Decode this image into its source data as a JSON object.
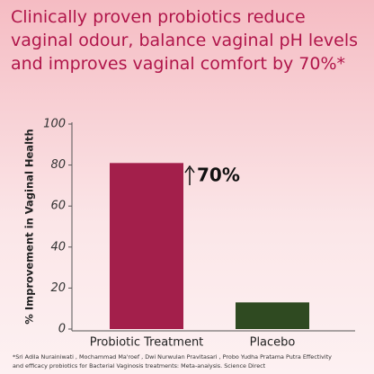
{
  "chart_data": {
    "type": "bar",
    "title": "Clinically proven probiotics reduce vaginal odour, balance vaginal pH levels and improves vaginal comfort by 70%*",
    "y_label": "% Improvement in Vaginal Health",
    "categories": [
      "Probiotic Treatment",
      "Placebo"
    ],
    "values": [
      81,
      13
    ],
    "colors": [
      "#a31f4b",
      "#2f4a21"
    ],
    "ylim": [
      0,
      100
    ],
    "yticks": [
      0,
      20,
      40,
      60,
      80,
      100
    ],
    "annotation": "70%",
    "footnote": [
      "*Sri Adila Nurainiwati , Mochammad Ma'roef , Dwi Nurwulan Pravitasari , Probo Yudha Pratama Putra Effectivity",
      "and efficacy probiotics for Bacterial Vaginosis treatments: Meta-analysis. Science Direct"
    ]
  }
}
